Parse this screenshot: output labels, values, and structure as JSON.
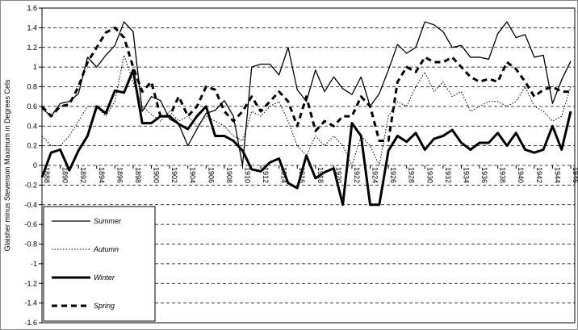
{
  "chart_data": {
    "type": "line",
    "y_label": "Glaisher minus Stevenson Maximum in Degrees Cels",
    "x": [
      1888,
      1889,
      1890,
      1891,
      1892,
      1893,
      1894,
      1895,
      1896,
      1897,
      1898,
      1899,
      1900,
      1901,
      1902,
      1903,
      1904,
      1905,
      1906,
      1907,
      1908,
      1909,
      1910,
      1911,
      1912,
      1913,
      1914,
      1915,
      1916,
      1917,
      1918,
      1919,
      1920,
      1921,
      1922,
      1923,
      1924,
      1925,
      1926,
      1927,
      1928,
      1929,
      1930,
      1931,
      1932,
      1933,
      1934,
      1935,
      1936,
      1937,
      1938,
      1939,
      1940,
      1941,
      1942,
      1943,
      1944,
      1945,
      1946
    ],
    "xlim": [
      1888,
      1946
    ],
    "xticks": [
      1888,
      1890,
      1892,
      1894,
      1896,
      1898,
      1900,
      1902,
      1904,
      1906,
      1908,
      1910,
      1912,
      1914,
      1916,
      1918,
      1920,
      1922,
      1924,
      1926,
      1928,
      1930,
      1932,
      1934,
      1936,
      1938,
      1940,
      1942,
      1944,
      1946
    ],
    "ylim": [
      -1.6,
      1.6
    ],
    "yticks": [
      1.6,
      1.4,
      1.2,
      1,
      0.8,
      0.6,
      0.4,
      0.2,
      0,
      -0.2,
      -0.4,
      -0.6,
      -0.8,
      -1,
      -1.2,
      -1.4,
      -1.6
    ],
    "grid": true,
    "legend": "bottom-left",
    "series": [
      {
        "name": "Summer",
        "color": "#000000",
        "style": "solid",
        "width": 1.3,
        "values": [
          0.58,
          0.5,
          0.63,
          0.65,
          0.73,
          1.1,
          1.0,
          1.12,
          1.22,
          1.46,
          1.36,
          0.55,
          0.7,
          0.66,
          0.47,
          0.42,
          0.2,
          0.37,
          0.53,
          0.56,
          0.66,
          0.5,
          0,
          1.0,
          1.03,
          1.03,
          0.92,
          1.2,
          0.77,
          0.65,
          0.97,
          0.75,
          0.9,
          0.78,
          0.72,
          0.9,
          0.6,
          0.73,
          0.97,
          1.23,
          1.14,
          1.2,
          1.46,
          1.43,
          1.36,
          1.2,
          1.22,
          1.1,
          1.1,
          1.08,
          1.34,
          1.46,
          1.3,
          1.33,
          1.1,
          1.12,
          0.63,
          0.87,
          1.06
        ]
      },
      {
        "name": "Autumn",
        "color": "#000000",
        "style": "dotted",
        "width": 1,
        "values": [
          0.3,
          0.2,
          0.2,
          0.3,
          0.45,
          0.6,
          0.6,
          0.5,
          0.65,
          1.12,
          0.85,
          0.6,
          0.52,
          0.45,
          0.55,
          0.45,
          0.5,
          0.4,
          0.5,
          0.45,
          0.4,
          0.3,
          0.25,
          0.55,
          0.5,
          0.6,
          0.65,
          0.45,
          0.2,
          0.1,
          0.3,
          0.2,
          0.3,
          0.2,
          0,
          0.3,
          0.2,
          0,
          0.5,
          0.65,
          0.6,
          0.8,
          0.95,
          0.75,
          0.85,
          0.7,
          0.75,
          0.55,
          0.6,
          0.65,
          0.65,
          0.6,
          0.65,
          0.8,
          0.6,
          0.55,
          0.45,
          0.5,
          0.8
        ]
      },
      {
        "name": "Winter",
        "color": "#000000",
        "style": "solid",
        "width": 3,
        "values": [
          -0.12,
          0.13,
          0.16,
          -0.05,
          0.15,
          0.3,
          0.6,
          0.53,
          0.76,
          0.74,
          0.97,
          0.43,
          0.43,
          0.5,
          0.5,
          0.42,
          0.37,
          0.5,
          0.6,
          0.3,
          0.3,
          0.25,
          0.15,
          -0.04,
          -0.06,
          0.03,
          0.07,
          -0.18,
          -0.23,
          0.1,
          -0.13,
          -0.07,
          -0.03,
          -0.4,
          0.43,
          0.3,
          -0.4,
          -0.4,
          0.15,
          0.3,
          0.24,
          0.33,
          0.16,
          0.27,
          0.3,
          0.36,
          0.23,
          0.16,
          0.23,
          0.23,
          0.33,
          0.2,
          0.33,
          0.16,
          0.13,
          0.16,
          0.4,
          0.16,
          0.55
        ]
      },
      {
        "name": "Spring",
        "color": "#000000",
        "style": "dashed",
        "width": 3,
        "values": [
          0.6,
          0.5,
          0.6,
          0.62,
          0.8,
          1.05,
          1.2,
          1.35,
          1.4,
          1.3,
          1.0,
          0.75,
          0.85,
          0.5,
          0.5,
          0.7,
          0.5,
          0.6,
          0.8,
          0.77,
          0.55,
          0.45,
          0.55,
          0.7,
          0.55,
          0.65,
          0.75,
          0.65,
          0.4,
          0.7,
          0.35,
          0.45,
          0.4,
          0.5,
          0.5,
          0.7,
          0.6,
          0.25,
          0.25,
          0.85,
          1.0,
          0.95,
          1.1,
          1.05,
          1.05,
          1.1,
          1.0,
          0.9,
          0.85,
          0.88,
          0.85,
          1.05,
          0.98,
          0.85,
          0.7,
          0.77,
          0.8,
          0.75,
          0.75
        ]
      }
    ]
  }
}
